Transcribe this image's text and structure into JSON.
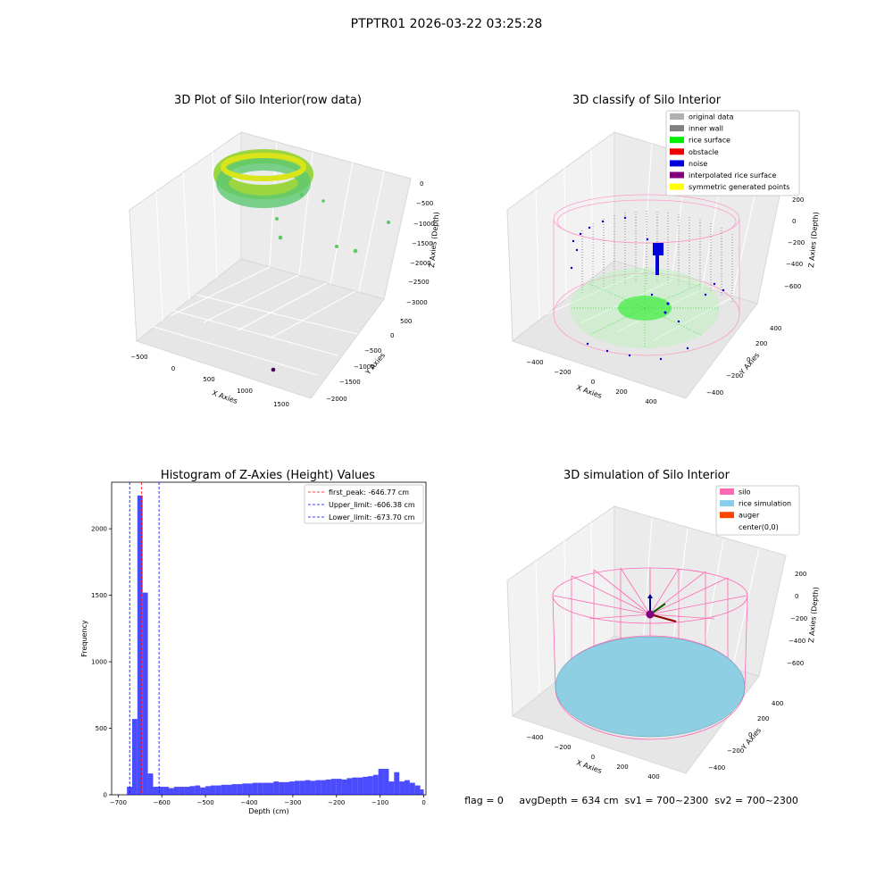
{
  "suptitle": "PTPTR01 2026-03-22 03:25:28",
  "panel1": {
    "title": "3D Plot of Silo Interior(row data)",
    "xlabel": "X Axies",
    "ylabel": "Y Axies",
    "zlabel": "Z Axies (Depth)",
    "x_ticks": [
      "−500",
      "0",
      "500",
      "1000",
      "1500"
    ],
    "y_ticks": [
      "500",
      "0",
      "−500",
      "−1000",
      "−1500",
      "−2000"
    ],
    "z_ticks": [
      "0",
      "−500",
      "−1000",
      "−1500",
      "−2000",
      "−2500",
      "−3000"
    ]
  },
  "panel2": {
    "title": "3D classify of Silo Interior",
    "xlabel": "X Axies",
    "ylabel": "Y Axies",
    "zlabel": "Z Axies (Depth)",
    "x_ticks": [
      "−400",
      "−200",
      "0",
      "200",
      "400"
    ],
    "y_ticks": [
      "400",
      "200",
      "0",
      "−200",
      "−400"
    ],
    "z_ticks": [
      "200",
      "0",
      "−200",
      "−400",
      "−600"
    ],
    "legend": [
      {
        "label": "original data",
        "color": "#b0b0b0"
      },
      {
        "label": "inner wall",
        "color": "#808080"
      },
      {
        "label": "rice surface",
        "color": "#00ee00"
      },
      {
        "label": "obstacle",
        "color": "#ee0000"
      },
      {
        "label": "noise",
        "color": "#0000dd"
      },
      {
        "label": "interpolated rice surface",
        "color": "#800080"
      },
      {
        "label": "symmetric generated points",
        "color": "#ffff00"
      }
    ]
  },
  "panel4": {
    "title": "3D simulation of Silo Interior",
    "xlabel": "X Axies",
    "ylabel": "Y Axies",
    "zlabel": "Z Axies (Depth)",
    "x_ticks": [
      "−400",
      "−200",
      "0",
      "200",
      "400"
    ],
    "y_ticks": [
      "400",
      "200",
      "0",
      "−200",
      "−400"
    ],
    "z_ticks": [
      "200",
      "0",
      "−200",
      "−400",
      "−600"
    ],
    "legend": [
      {
        "label": "silo",
        "color": "#ff69b4"
      },
      {
        "label": "rice simulation",
        "color": "#87ceeb"
      },
      {
        "label": "auger",
        "color": "#ff4500"
      },
      {
        "label": "center(0,0)",
        "color": ""
      }
    ]
  },
  "status_text": "flag = 0     avgDepth = 634 cm  sv1 = 700~2300  sv2 = 700~2300",
  "chart_data": {
    "type": "bar",
    "title": "Histogram of Z-Axies (Height) Values",
    "xlabel": "Depth (cm)",
    "ylabel": "Frequency",
    "xlim": [
      -715,
      5
    ],
    "ylim": [
      0,
      2350
    ],
    "x_ticks": [
      -700,
      -600,
      -500,
      -400,
      -300,
      -200,
      -100,
      0
    ],
    "y_ticks": [
      0,
      500,
      1000,
      1500,
      2000
    ],
    "bar_color": "#0000ff",
    "bin_edges": [
      -680,
      -668,
      -656,
      -644,
      -632,
      -620,
      -608,
      -596,
      -584,
      -572,
      -560,
      -548,
      -536,
      -524,
      -512,
      -500,
      -488,
      -476,
      -464,
      -452,
      -440,
      -428,
      -416,
      -404,
      -392,
      -380,
      -368,
      -356,
      -344,
      -332,
      -320,
      -308,
      -296,
      -284,
      -272,
      -260,
      -248,
      -236,
      -224,
      -212,
      -200,
      -188,
      -176,
      -164,
      -152,
      -140,
      -128,
      -116,
      -104,
      -92,
      -80,
      -68,
      -56,
      -44,
      -32,
      -20,
      -8,
      0
    ],
    "counts": [
      60,
      570,
      2250,
      1520,
      160,
      60,
      60,
      60,
      50,
      60,
      60,
      60,
      65,
      70,
      55,
      65,
      70,
      70,
      75,
      75,
      80,
      80,
      85,
      85,
      90,
      90,
      90,
      90,
      100,
      95,
      95,
      100,
      105,
      105,
      110,
      105,
      110,
      110,
      115,
      120,
      120,
      115,
      125,
      130,
      130,
      135,
      140,
      150,
      195,
      195,
      100,
      170,
      100,
      110,
      90,
      70,
      40
    ],
    "reference_lines": [
      {
        "label": "first_peak: -646.77 cm",
        "x": -646.77,
        "color": "#ff0000"
      },
      {
        "label": "Upper_limit: -606.38 cm",
        "x": -606.38,
        "color": "#0000ff"
      },
      {
        "label": "Lower_limit: -673.70 cm",
        "x": -673.7,
        "color": "#0000ff"
      }
    ],
    "legend_position": "top-right"
  }
}
